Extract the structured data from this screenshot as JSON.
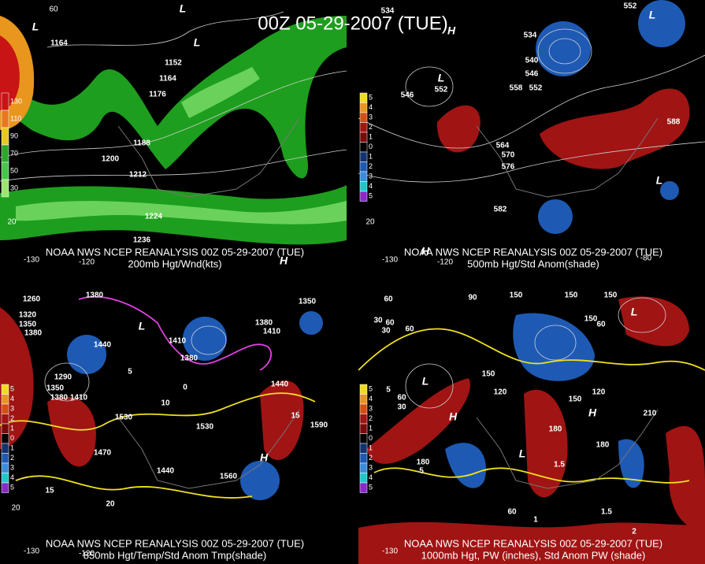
{
  "title": "00Z 05-29-2007 (TUE)",
  "panels": [
    {
      "source": "NOAA NWS NCEP REANALYSIS 00Z 05-29-2007 (TUE)",
      "product": "200mb Hgt/Wnd(kts)",
      "legend": [
        130,
        110,
        90,
        70,
        50,
        30
      ],
      "legend_colors": [
        "#c81414",
        "#e8781e",
        "#e8c81e",
        "#2aa82a",
        "#46c846",
        "#9ae66e"
      ],
      "contour_labels": [
        "1164",
        "1152",
        "1164",
        "1176",
        "1188",
        "1200",
        "1212",
        "1224",
        "1236"
      ],
      "axis_labels": [
        "60",
        "-130",
        "-120",
        "20"
      ],
      "centers": [
        "L",
        "L",
        "L",
        "H"
      ]
    },
    {
      "source": "NOAA NWS NCEP REANALYSIS 00Z 05-29-2007 (TUE)",
      "product": "500mb Hgt/Std Anom(shade)",
      "legend": [
        5,
        4,
        3,
        2,
        1,
        0,
        1,
        2,
        3,
        4,
        5
      ],
      "legend_colors": [
        "#f0dc1e",
        "#e8961e",
        "#d25014",
        "#a01414",
        "#780a0a",
        "#000000",
        "#14326e",
        "#1e5ab4",
        "#3c8cdc",
        "#1ec8c8",
        "#8c28c8"
      ],
      "contour_labels": [
        "534",
        "552",
        "534",
        "540",
        "546",
        "558",
        "552",
        "546",
        "552",
        "564",
        "570",
        "576",
        "582",
        "588"
      ],
      "axis_labels": [
        "-130",
        "-120",
        "-80",
        "20"
      ],
      "centers": [
        "L",
        "H",
        "L",
        "L",
        "H"
      ]
    },
    {
      "source": "NOAA NWS NCEP REANALYSIS 00Z 05-29-2007 (TUE)",
      "product": "850mb Hgt/Temp/Std Anom Tmp(shade)",
      "legend": [
        5,
        4,
        3,
        2,
        1,
        0,
        1,
        2,
        3,
        4,
        5
      ],
      "legend_colors": [
        "#f0dc1e",
        "#e8961e",
        "#d25014",
        "#a01414",
        "#780a0a",
        "#000000",
        "#14326e",
        "#1e5ab4",
        "#3c8cdc",
        "#1ec8c8",
        "#8c28c8"
      ],
      "contour_labels": [
        "1260",
        "1320",
        "1350",
        "1380",
        "1380",
        "1440",
        "1380",
        "1410",
        "1350",
        "1380",
        "1410",
        "1440",
        "1290",
        "1350",
        "1380",
        "1410",
        "1530",
        "1530",
        "1590",
        "1470",
        "1440",
        "1560",
        "5",
        "10",
        "15",
        "15",
        "20",
        "0"
      ],
      "axis_labels": [
        "-130",
        "-120",
        "20"
      ],
      "centers": [
        "L",
        "H"
      ]
    },
    {
      "source": "NOAA NWS NCEP REANALYSIS 00Z 05-29-2007 (TUE)",
      "product": "1000mb Hgt, PW (inches), Std Anom PW (shade)",
      "legend": [
        5,
        4,
        3,
        2,
        1,
        0,
        1,
        2,
        3,
        4,
        5
      ],
      "legend_colors": [
        "#f0dc1e",
        "#e8961e",
        "#d25014",
        "#a01414",
        "#780a0a",
        "#000000",
        "#14326e",
        "#1e5ab4",
        "#3c8cdc",
        "#1ec8c8",
        "#8c28c8"
      ],
      "contour_labels": [
        "60",
        "90",
        "150",
        "150",
        "150",
        "60",
        "30",
        "30",
        "60",
        "150",
        "60",
        "5",
        "60",
        "30",
        "150",
        "120",
        "150",
        "120",
        "210",
        "180",
        "180",
        "180",
        "60",
        "5",
        "1.5",
        "1.5",
        "2",
        "1"
      ],
      "axis_labels": [
        "-130"
      ],
      "centers": [
        "L",
        "H",
        "H",
        "L",
        "L"
      ]
    }
  ]
}
